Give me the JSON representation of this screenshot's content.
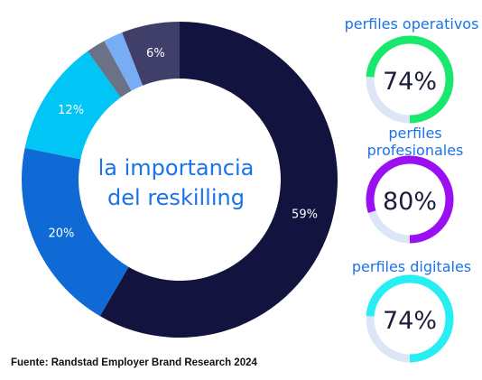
{
  "center_label": {
    "line1": "la importancia",
    "line2": "del reskilling"
  },
  "chart_data": [
    {
      "type": "pie",
      "slices": [
        {
          "value": 59,
          "label": "59%",
          "color": "#13133f"
        },
        {
          "value": 20,
          "label": "20%",
          "color": "#0f6ad6"
        },
        {
          "value": 12,
          "label": "12%",
          "color": "#00c5f5"
        },
        {
          "value": 2,
          "label": "",
          "color": "#6b7186"
        },
        {
          "value": 2,
          "label": "",
          "color": "#76adf5"
        },
        {
          "value": 6,
          "label": "6%",
          "color": "#3f3f6a"
        }
      ]
    },
    {
      "type": "pie",
      "title": "perfiles operativos",
      "value": 74,
      "label": "74%",
      "color": "#19e86c",
      "track": "#dde6f6"
    },
    {
      "type": "pie",
      "title": "perfiles profesionales",
      "title_lines": [
        "perfiles",
        "profesionales"
      ],
      "value": 80,
      "label": "80%",
      "color": "#9b10f2",
      "track": "#dde6f6"
    },
    {
      "type": "pie",
      "title": "perfiles digitales",
      "value": 74,
      "label": "74%",
      "color": "#26eef2",
      "track": "#dde6f6"
    }
  ],
  "source": "Fuente: Randstad Employer Brand Research 2024"
}
